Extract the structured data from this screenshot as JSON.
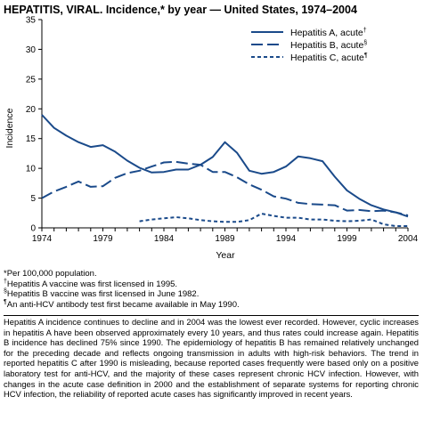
{
  "header": {
    "title": "HEPATITIS, VIRAL. Incidence,* by year — United States, 1974–2004"
  },
  "chart_data": {
    "type": "line",
    "ylabel": "Incidence",
    "xlabel": "Year",
    "xlim": [
      1974,
      2004
    ],
    "ylim": [
      0,
      35
    ],
    "x_ticks": [
      "1974",
      "1979",
      "1984",
      "1989",
      "1994",
      "1999",
      "2004"
    ],
    "y_ticks": [
      "0",
      "5",
      "10",
      "15",
      "20",
      "25",
      "30",
      "35"
    ],
    "grid": false,
    "legend_position": "top-right",
    "series": [
      {
        "name": "Hepatitis A, acute",
        "legend_mark": "†",
        "style": "solid",
        "color": "#1a4a8a",
        "x": [
          1974,
          1975,
          1976,
          1977,
          1978,
          1979,
          1980,
          1981,
          1982,
          1983,
          1984,
          1985,
          1986,
          1987,
          1988,
          1989,
          1990,
          1991,
          1992,
          1993,
          1994,
          1995,
          1996,
          1997,
          1998,
          1999,
          2000,
          2001,
          2002,
          2003,
          2004
        ],
        "y": [
          19.0,
          16.8,
          15.5,
          14.4,
          13.6,
          13.9,
          12.8,
          11.3,
          10.1,
          9.3,
          9.4,
          9.8,
          9.8,
          10.6,
          11.9,
          14.4,
          12.6,
          9.6,
          9.1,
          9.4,
          10.3,
          12.0,
          11.7,
          11.2,
          8.6,
          6.3,
          4.9,
          3.8,
          3.1,
          2.6,
          1.9
        ]
      },
      {
        "name": "Hepatitis B, acute",
        "legend_mark": "§",
        "style": "long-dash",
        "color": "#1a4a8a",
        "x": [
          1974,
          1975,
          1976,
          1977,
          1978,
          1979,
          1980,
          1981,
          1982,
          1983,
          1984,
          1985,
          1986,
          1987,
          1988,
          1989,
          1990,
          1991,
          1992,
          1993,
          1994,
          1995,
          1996,
          1997,
          1998,
          1999,
          2000,
          2001,
          2002,
          2003,
          2004
        ],
        "y": [
          5.0,
          6.1,
          6.9,
          7.8,
          6.9,
          7.0,
          8.4,
          9.2,
          9.6,
          10.3,
          11.0,
          11.1,
          10.8,
          10.6,
          9.4,
          9.4,
          8.5,
          7.3,
          6.4,
          5.3,
          4.9,
          4.2,
          4.0,
          3.9,
          3.8,
          2.9,
          3.0,
          2.8,
          2.9,
          2.6,
          2.1
        ]
      },
      {
        "name": "Hepatitis C, acute",
        "legend_mark": "¶",
        "style": "short-dash",
        "color": "#1a4a8a",
        "x": [
          1982,
          1983,
          1984,
          1985,
          1986,
          1987,
          1988,
          1989,
          1990,
          1991,
          1992,
          1993,
          1994,
          1995,
          1996,
          1997,
          1998,
          1999,
          2000,
          2001,
          2002,
          2003,
          2004
        ],
        "y": [
          1.1,
          1.4,
          1.6,
          1.8,
          1.6,
          1.3,
          1.1,
          1.0,
          1.0,
          1.3,
          2.4,
          2.0,
          1.7,
          1.7,
          1.4,
          1.4,
          1.2,
          1.1,
          1.2,
          1.4,
          0.6,
          0.3,
          0.3
        ]
      }
    ]
  },
  "footnotes": [
    {
      "mark": "*",
      "text": "Per 100,000 population."
    },
    {
      "mark": "†",
      "text": "Hepatitis A vaccine was first licensed in 1995."
    },
    {
      "mark": "§",
      "text": "Hepatitis B vaccine was first licensed in June 1982."
    },
    {
      "mark": "¶",
      "text": "An anti-HCV antibody test first became available in May 1990."
    }
  ],
  "body_text": "Hepatitis A incidence continues to decline and in 2004 was the lowest ever recorded. However, cyclic increases in hepatitis A have been observed approximately every 10 years, and thus rates could increase again. Hepatitis B incidence has declined 75% since 1990. The epidemiology of hepatitis B has remained relatively unchanged for the preceding decade and reflects ongoing transmission in adults with high-risk behaviors. The trend in reported hepatitis C after 1990 is misleading, because reported cases frequently were based only on a positive laboratory test for anti-HCV, and the majority of these cases represent chronic HCV infection. However, with changes in the acute case definition in 2000 and the establishment of separate systems for reporting chronic HCV infection, the reliability of reported acute cases has significantly improved in recent years."
}
